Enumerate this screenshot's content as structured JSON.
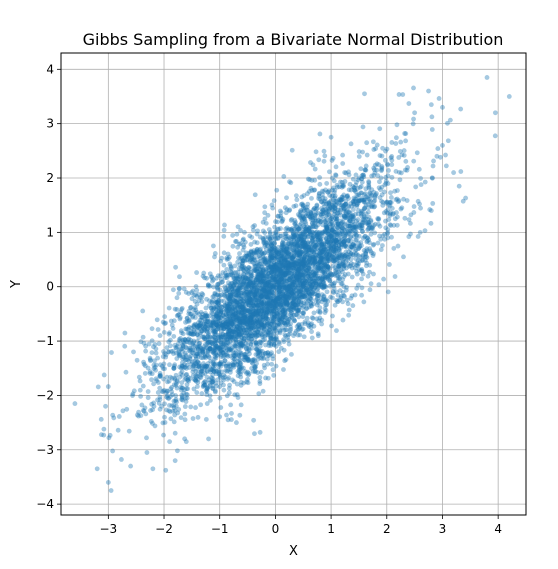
{
  "chart_data": {
    "type": "scatter",
    "title": "Gibbs Sampling from a Bivariate Normal Distribution",
    "xlabel": "X",
    "ylabel": "Y",
    "xlim": [
      -3.85,
      4.5
    ],
    "ylim": [
      -4.2,
      4.3
    ],
    "xticks": [
      -3,
      -2,
      -1,
      0,
      1,
      2,
      3,
      4
    ],
    "yticks": [
      -4,
      -3,
      -2,
      -1,
      0,
      1,
      2,
      3,
      4
    ],
    "xtick_labels": [
      "−3",
      "−2",
      "−1",
      "0",
      "1",
      "2",
      "3",
      "4"
    ],
    "ytick_labels": [
      "−4",
      "−3",
      "−2",
      "−1",
      "0",
      "1",
      "2",
      "3",
      "4"
    ],
    "grid": true,
    "series": [
      {
        "color": "#1f77b4",
        "alpha": 0.4,
        "description": "approx. 5000 samples from a bivariate normal with means 0, unit variances and correlation about 0.8",
        "distribution": {
          "mean": [
            0,
            0
          ],
          "std": [
            1,
            1
          ],
          "correlation": 0.8,
          "count": 5000
        },
        "outliers": [
          [
            -3.6,
            -2.15
          ],
          [
            -3.2,
            -3.35
          ],
          [
            -3.0,
            -3.6
          ],
          [
            -2.95,
            -3.75
          ],
          [
            -3.05,
            -2.2
          ],
          [
            -2.6,
            -3.3
          ],
          [
            -2.2,
            -3.35
          ],
          [
            -1.8,
            -3.2
          ],
          [
            -1.6,
            -2.85
          ],
          [
            -1.9,
            -2.85
          ],
          [
            -0.85,
            -2.45
          ],
          [
            -0.7,
            -2.5
          ],
          [
            -1.2,
            -2.8
          ],
          [
            1.6,
            3.55
          ],
          [
            2.5,
            3.2
          ],
          [
            2.75,
            3.6
          ],
          [
            2.8,
            3.35
          ],
          [
            3.0,
            3.3
          ],
          [
            3.8,
            3.85
          ],
          [
            3.95,
            3.2
          ],
          [
            4.2,
            3.5
          ],
          [
            3.3,
            1.85
          ],
          [
            3.2,
            2.1
          ],
          [
            3.0,
            2.6
          ],
          [
            2.9,
            2.4
          ],
          [
            1.0,
            2.75
          ],
          [
            2.6,
            1.0
          ],
          [
            2.8,
            1.4
          ],
          [
            2.3,
            0.55
          ]
        ]
      }
    ]
  }
}
